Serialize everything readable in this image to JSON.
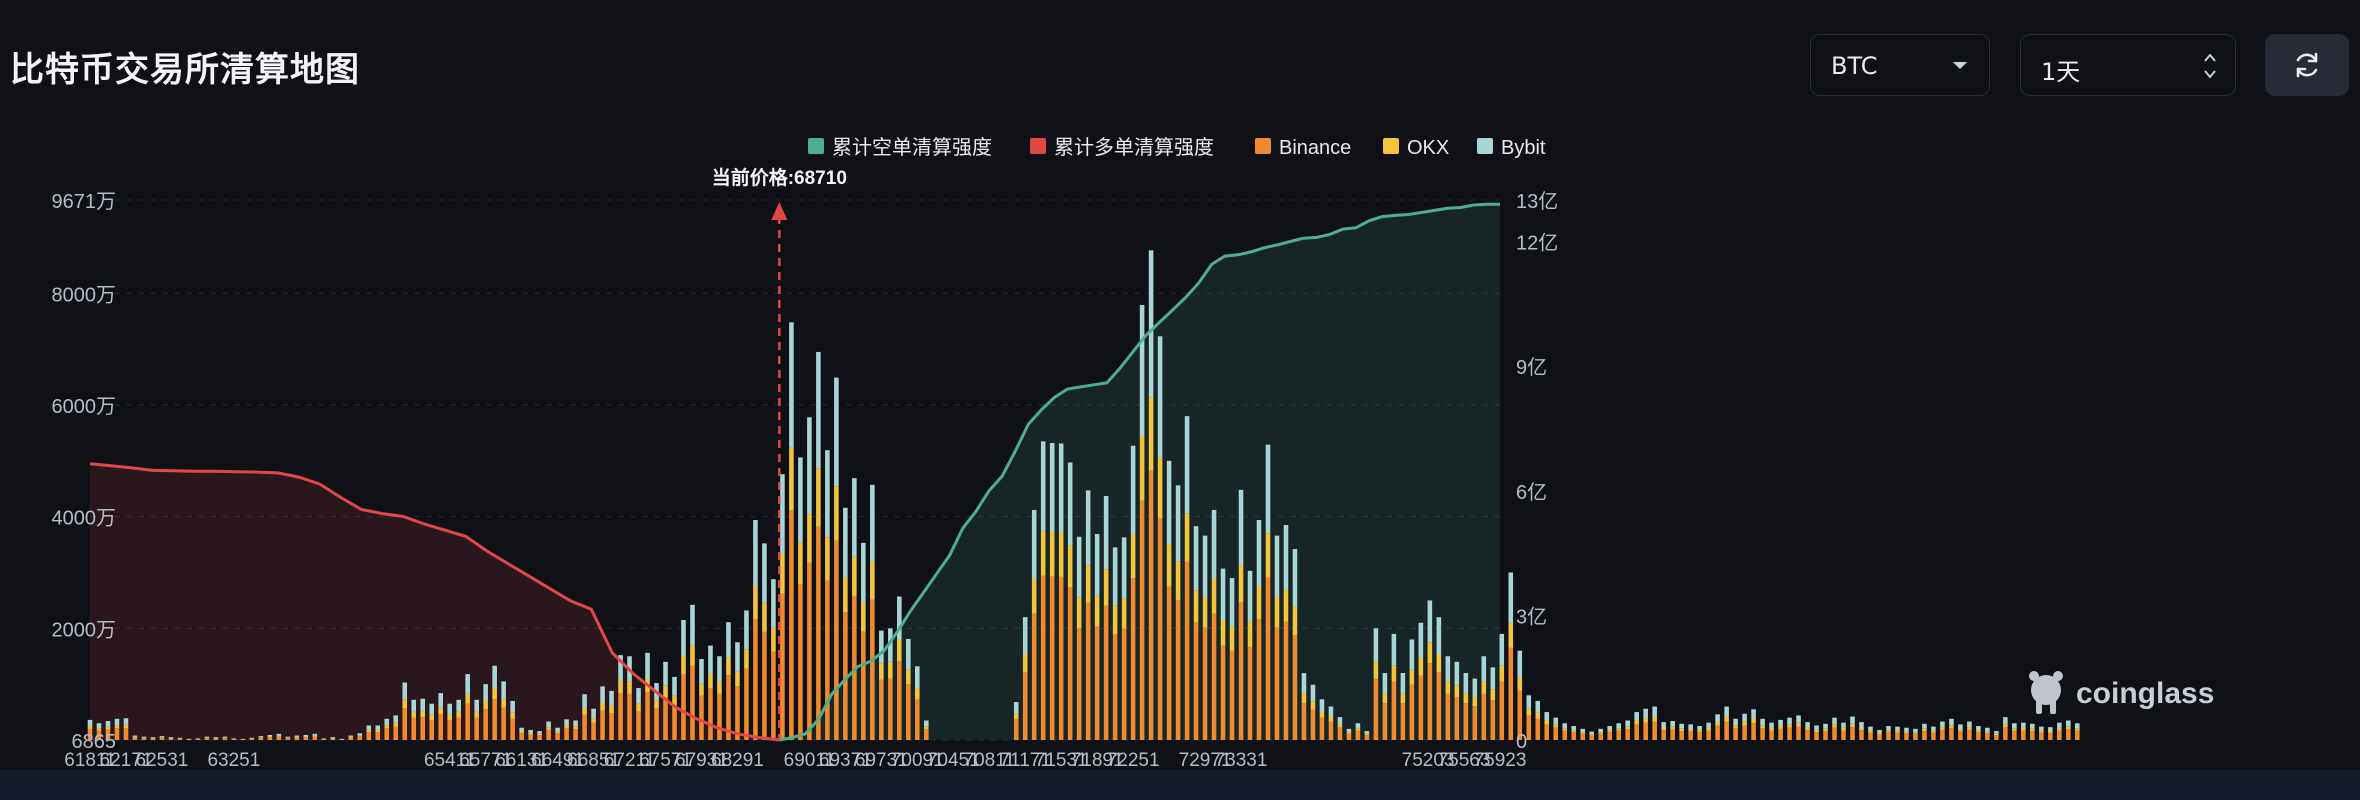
{
  "page": {
    "title": "比特币交易所清算地图",
    "coin_select_value": "BTC",
    "range_select_value": "1天",
    "watermark": "coinglass"
  },
  "chart_data": {
    "type": "bar",
    "stacked": true,
    "legend": [
      "累计空单清算强度",
      "累计多单清算强度",
      "Binance",
      "OKX",
      "Bybit"
    ],
    "legend_placement": "top-center",
    "colors": {
      "short_cum": "#4fae8f",
      "long_cum": "#e04848",
      "binance": "#ef8a2e",
      "okx": "#f2c53d",
      "bybit": "#a8d6d6",
      "price_marker": "#e04848"
    },
    "current_price_label": "当前价格:68710",
    "current_price": 68710,
    "x_range": [
      61811,
      75923
    ],
    "x_step": 90,
    "x_ticks": [
      61811,
      62171,
      62531,
      63251,
      65411,
      65771,
      66131,
      66491,
      66851,
      67211,
      67571,
      67931,
      68291,
      69011,
      69371,
      69731,
      70091,
      70451,
      70811,
      71171,
      71531,
      71891,
      72251,
      72971,
      73331,
      75203,
      75563,
      75923
    ],
    "y_left_ticks": [
      "6865",
      "2000万",
      "4000万",
      "6000万",
      "8000万",
      "9671万"
    ],
    "y_left_values": [
      6865,
      20000000,
      40000000,
      60000000,
      80000000,
      96710000
    ],
    "y_right_ticks": [
      "0",
      "3亿",
      "6亿",
      "9亿",
      "12亿",
      "13亿"
    ],
    "y_right_values": [
      0,
      300000000,
      600000000,
      900000000,
      1200000000,
      1300000000
    ],
    "totals_wan": [
      360,
      300,
      340,
      380,
      390,
      80,
      60,
      50,
      70,
      50,
      40,
      20,
      30,
      60,
      50,
      60,
      30,
      20,
      40,
      70,
      90,
      110,
      60,
      80,
      90,
      110,
      30,
      50,
      20,
      80,
      120,
      260,
      260,
      380,
      440,
      1030,
      720,
      740,
      650,
      840,
      650,
      720,
      1180,
      720,
      1000,
      1330,
      1050,
      700,
      220,
      180,
      160,
      330,
      220,
      370,
      350,
      820,
      560,
      960,
      880,
      1520,
      1500,
      930,
      1560,
      1020,
      1400,
      1130,
      2150,
      2420,
      1450,
      1690,
      1500,
      2110,
      1750,
      2320,
      3940,
      3520,
      2880,
      4760,
      7480,
      5060,
      5780,
      6950,
      5190,
      6490,
      4160,
      4690,
      3530,
      4570,
      1960,
      2000,
      2570,
      1810,
      1320,
      350,
      0,
      0,
      0,
      0,
      0,
      0,
      0,
      0,
      0,
      680,
      2200,
      4120,
      5350,
      5320,
      5310,
      4970,
      3640,
      4470,
      3690,
      4370,
      3450,
      3630,
      5270,
      7790,
      8770,
      7230,
      5000,
      4560,
      5800,
      3830,
      3660,
      4120,
      3070,
      2900,
      4480,
      3030,
      3940,
      5290,
      3660,
      3850,
      3420,
      1200,
      990,
      730,
      600,
      410,
      200,
      300,
      160,
      2000,
      1200,
      1900,
      1200,
      1800,
      2100,
      2500,
      2200,
      1500,
      1400,
      1200,
      1100,
      1500,
      1300,
      1900,
      3000,
      1600,
      800,
      700,
      500,
      400,
      300,
      250,
      200,
      150,
      200,
      250,
      300,
      350,
      500,
      560,
      600,
      320,
      340,
      290,
      280,
      250,
      310,
      460,
      600,
      380,
      470,
      550,
      380,
      310,
      360,
      400,
      440,
      320,
      260,
      290,
      400,
      310,
      420,
      320,
      240,
      180,
      250,
      240,
      220,
      200,
      290,
      240,
      330,
      380,
      280,
      330,
      250,
      220,
      160,
      410,
      300,
      310,
      290,
      240,
      230,
      310,
      350,
      300
    ],
    "long_cum_yi": [
      6.65,
      6.6,
      6.55,
      6.49,
      6.48,
      6.47,
      6.47,
      6.46,
      6.45,
      6.43,
      6.33,
      6.16,
      5.84,
      5.55,
      5.45,
      5.38,
      5.2,
      5.05,
      4.9,
      4.55,
      4.25,
      3.95,
      3.65,
      3.35,
      3.15,
      2.1,
      1.6,
      1.2,
      0.8,
      0.52,
      0.3,
      0.15,
      0.06,
      0.0
    ],
    "short_cum_yi": [
      0.0,
      0.06,
      0.15,
      0.5,
      1.1,
      1.45,
      1.77,
      1.9,
      2.15,
      2.6,
      3.1,
      3.55,
      4.0,
      4.45,
      5.1,
      5.5,
      6.0,
      6.35,
      6.95,
      7.6,
      7.95,
      8.25,
      8.45,
      8.5,
      8.55,
      8.6,
      8.95,
      9.35,
      9.75,
      10.05,
      10.35,
      10.65,
      11.0,
      11.45,
      11.65,
      11.68,
      11.75,
      11.85,
      11.92,
      12.0,
      12.08,
      12.1,
      12.17,
      12.3,
      12.33,
      12.5,
      12.6,
      12.63,
      12.65,
      12.7,
      12.75,
      12.8,
      12.82,
      12.88,
      12.9,
      12.9
    ]
  }
}
